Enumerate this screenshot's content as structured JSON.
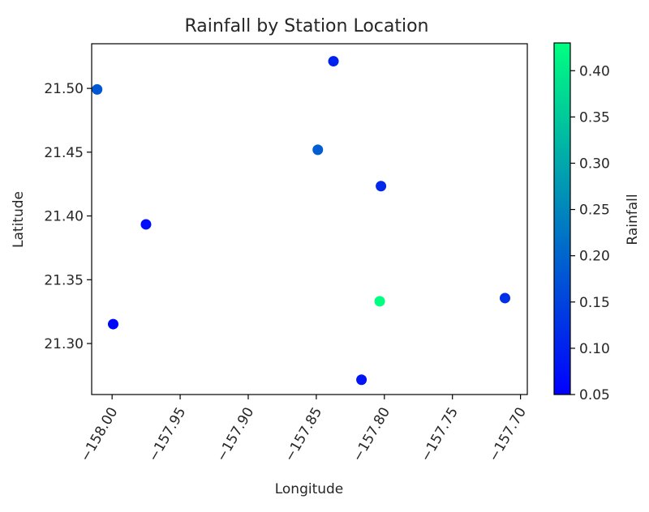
{
  "chart_data": {
    "type": "scatter",
    "title": "Rainfall by Station Location",
    "xlabel": "Longitude",
    "ylabel": "Latitude",
    "xlim": [
      -158.015,
      -157.695
    ],
    "ylim": [
      21.26,
      21.535
    ],
    "grid": false,
    "xticks": [
      {
        "value": -158.0,
        "label": "−158.00"
      },
      {
        "value": -157.95,
        "label": "−157.95"
      },
      {
        "value": -157.9,
        "label": "−157.90"
      },
      {
        "value": -157.85,
        "label": "−157.85"
      },
      {
        "value": -157.8,
        "label": "−157.80"
      },
      {
        "value": -157.75,
        "label": "−157.75"
      },
      {
        "value": -157.7,
        "label": "−157.70"
      }
    ],
    "yticks": [
      {
        "value": 21.3,
        "label": "21.30"
      },
      {
        "value": 21.35,
        "label": "21.35"
      },
      {
        "value": 21.4,
        "label": "21.40"
      },
      {
        "value": 21.45,
        "label": "21.45"
      },
      {
        "value": 21.5,
        "label": "21.50"
      }
    ],
    "points": [
      {
        "x": -158.011,
        "y": 21.4992,
        "c": 0.18
      },
      {
        "x": -157.8374,
        "y": 21.5213,
        "c": 0.1
      },
      {
        "x": -157.8489,
        "y": 21.4519,
        "c": 0.19
      },
      {
        "x": -157.8025,
        "y": 21.4234,
        "c": 0.11
      },
      {
        "x": -157.9751,
        "y": 21.3934,
        "c": 0.07
      },
      {
        "x": -157.9992,
        "y": 21.3152,
        "c": 0.06
      },
      {
        "x": -157.8034,
        "y": 21.3331,
        "c": 0.43
      },
      {
        "x": -157.7114,
        "y": 21.3356,
        "c": 0.12
      },
      {
        "x": -157.8168,
        "y": 21.2716,
        "c": 0.08
      }
    ],
    "colorbar": {
      "label": "Rainfall",
      "min": 0.05,
      "max": 0.43,
      "colormap": "winter",
      "color_low": "#0000ff",
      "color_high": "#00ff80",
      "ticks": [
        {
          "value": 0.05,
          "label": "0.05"
        },
        {
          "value": 0.1,
          "label": "0.10"
        },
        {
          "value": 0.15,
          "label": "0.15"
        },
        {
          "value": 0.2,
          "label": "0.20"
        },
        {
          "value": 0.25,
          "label": "0.25"
        },
        {
          "value": 0.3,
          "label": "0.30"
        },
        {
          "value": 0.35,
          "label": "0.35"
        },
        {
          "value": 0.4,
          "label": "0.40"
        }
      ]
    }
  }
}
